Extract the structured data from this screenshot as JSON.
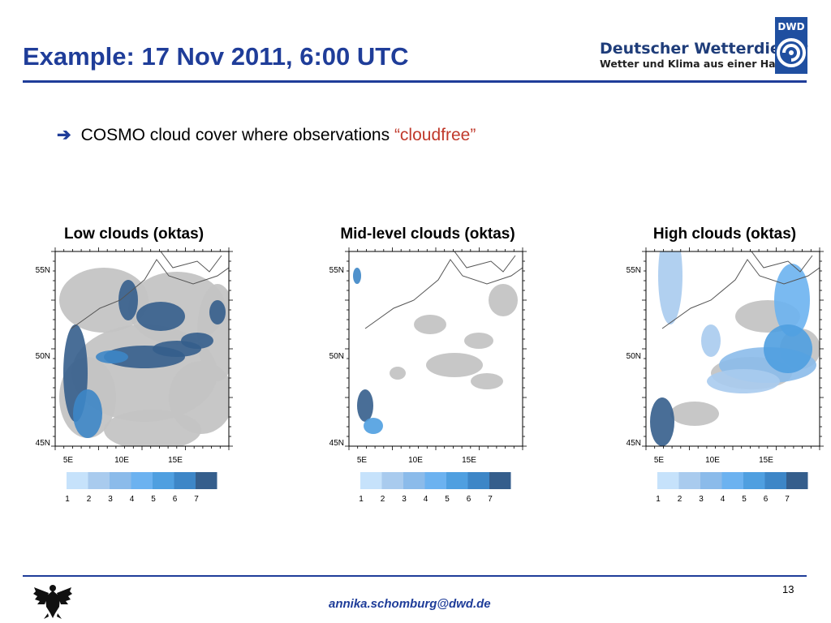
{
  "header": {
    "title": "Example: 17 Nov 2011, 6:00 UTC",
    "brand_name": "Deutscher Wetterdienst",
    "brand_tagline": "Wetter und Klima aus einer Hand",
    "logo_text": "DWD"
  },
  "bullet": {
    "icon": "right-arrow-icon",
    "text": "COSMO cloud cover where observations ",
    "highlight": "“cloudfree”"
  },
  "panels": [
    {
      "title": "Low clouds (oktas)"
    },
    {
      "title": "Mid-level clouds (oktas)"
    },
    {
      "title": "High clouds (oktas)"
    }
  ],
  "map_axes": {
    "lat_labels": [
      "55N",
      "50N",
      "45N"
    ],
    "lon_labels": [
      "5E",
      "10E",
      "15E"
    ]
  },
  "colorbar": {
    "labels": [
      "1",
      "2",
      "3",
      "4",
      "5",
      "6",
      "7"
    ],
    "colors": [
      "#c6e2fb",
      "#a9cbee",
      "#8bbbea",
      "#6cb2f0",
      "#4f9fe0",
      "#3d86c7",
      "#355e8c"
    ]
  },
  "colors": {
    "title_blue": "#1f3d99",
    "highlight_red": "#c0392b",
    "land_gray": "#c4c4c4",
    "coastline": "#555555"
  },
  "footer": {
    "page_number": "13",
    "email": "annika.schomburg@dwd.de",
    "emblem": "federal-eagle-icon"
  }
}
